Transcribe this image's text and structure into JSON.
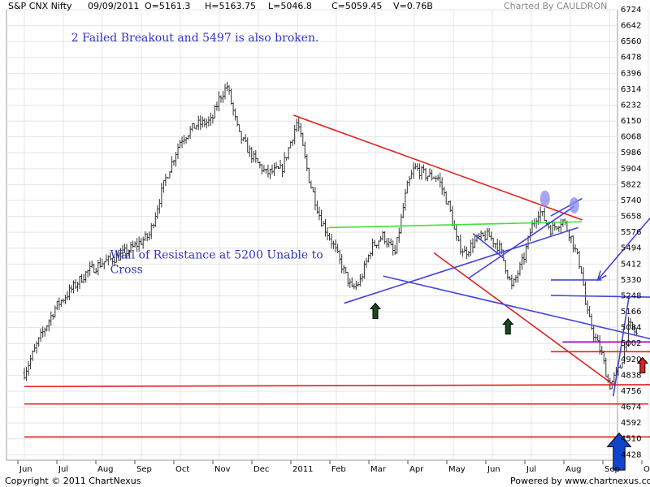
{
  "header": {
    "symbol": "S&P CNX Nifty",
    "date": "09/09/2011",
    "open": "O=5161.3",
    "high": "H=5163.75",
    "low": "L=5046.8",
    "close": "C=5059.45",
    "volume": "V=0.76B",
    "charted_by": "Charted By CAULDRON"
  },
  "footer": {
    "copyright": "Copyright © 2011 ChartNexus",
    "powered_by": "Powered by www.chartnexus.com"
  },
  "chart_data": {
    "type": "candlestick",
    "y_ticks": [
      6724,
      6642,
      6560,
      6478,
      6396,
      6314,
      6232,
      6150,
      6068,
      5986,
      5904,
      5822,
      5740,
      5658,
      5576,
      5494,
      5412,
      5330,
      5248,
      5166,
      5084,
      5002,
      4920,
      4838,
      4756,
      4674,
      4592,
      4510,
      4428
    ],
    "ylim": [
      4400,
      6724
    ],
    "x_labels": [
      "Jun",
      "Jul",
      "Aug",
      "Sep",
      "Oct",
      "Nov",
      "Dec",
      "2011",
      "Feb",
      "Mar",
      "Apr",
      "May",
      "Jun",
      "Jul",
      "Aug",
      "Sep",
      "Oct"
    ],
    "x_label_positions": [
      0,
      1,
      2,
      3,
      4,
      5,
      6,
      7,
      8,
      9,
      10,
      11,
      12,
      13,
      14,
      15,
      16
    ],
    "price_path": [
      [
        0,
        4850
      ],
      [
        0.4,
        5030
      ],
      [
        0.8,
        5190
      ],
      [
        1.2,
        5280
      ],
      [
        1.6,
        5370
      ],
      [
        2,
        5420
      ],
      [
        2.4,
        5450
      ],
      [
        2.8,
        5500
      ],
      [
        3.2,
        5560
      ],
      [
        3.6,
        5840
      ],
      [
        4,
        6050
      ],
      [
        4.4,
        6130
      ],
      [
        4.8,
        6150
      ],
      [
        5,
        6270
      ],
      [
        5.2,
        6330
      ],
      [
        5.5,
        6080
      ],
      [
        5.9,
        5950
      ],
      [
        6.2,
        5880
      ],
      [
        6.6,
        5900
      ],
      [
        7,
        6150
      ],
      [
        7.3,
        5850
      ],
      [
        7.6,
        5640
      ],
      [
        7.9,
        5520
      ],
      [
        8.1,
        5420
      ],
      [
        8.4,
        5280
      ],
      [
        8.6,
        5320
      ],
      [
        8.9,
        5500
      ],
      [
        9.2,
        5560
      ],
      [
        9.5,
        5460
      ],
      [
        9.8,
        5800
      ],
      [
        10,
        5910
      ],
      [
        10.3,
        5870
      ],
      [
        10.6,
        5860
      ],
      [
        10.9,
        5700
      ],
      [
        11.1,
        5520
      ],
      [
        11.3,
        5470
      ],
      [
        11.6,
        5540
      ],
      [
        11.9,
        5560
      ],
      [
        12.2,
        5490
      ],
      [
        12.5,
        5290
      ],
      [
        12.8,
        5440
      ],
      [
        13,
        5600
      ],
      [
        13.2,
        5690
      ],
      [
        13.5,
        5590
      ],
      [
        13.8,
        5640
      ],
      [
        14,
        5560
      ],
      [
        14.3,
        5370
      ],
      [
        14.4,
        5180
      ],
      [
        14.6,
        5050
      ],
      [
        14.8,
        4950
      ],
      [
        15,
        4780
      ],
      [
        15.3,
        4890
      ],
      [
        15.5,
        5100
      ],
      [
        15.7,
        5050
      ]
    ],
    "lines": [
      {
        "color": "#e02020",
        "points": [
          [
            6.9,
            6180
          ],
          [
            14.3,
            5640
          ]
        ]
      },
      {
        "color": "#e02020",
        "points": [
          [
            10.5,
            5470
          ],
          [
            15.1,
            4790
          ]
        ]
      },
      {
        "color": "#e02020",
        "points": [
          [
            0,
            4780
          ],
          [
            16.4,
            4790
          ]
        ]
      },
      {
        "color": "#e02020",
        "points": [
          [
            0,
            4690
          ],
          [
            16,
            4690
          ]
        ]
      },
      {
        "color": "#e02020",
        "points": [
          [
            0,
            4520
          ],
          [
            16.4,
            4520
          ]
        ]
      },
      {
        "color": "#e02020",
        "points": [
          [
            13.5,
            4960
          ],
          [
            16.4,
            4960
          ]
        ]
      },
      {
        "color": "#40e040",
        "points": [
          [
            7.8,
            5600
          ],
          [
            14.3,
            5630
          ]
        ]
      },
      {
        "color": "#4444dd",
        "points": [
          [
            8.2,
            5210
          ],
          [
            14.2,
            5600
          ]
        ]
      },
      {
        "color": "#4444dd",
        "points": [
          [
            9.2,
            5350
          ],
          [
            16.4,
            5010
          ]
        ]
      },
      {
        "color": "#4444dd",
        "points": [
          [
            11.4,
            5340
          ],
          [
            14.1,
            5710
          ]
        ]
      },
      {
        "color": "#4444dd",
        "points": [
          [
            13.5,
            5660
          ],
          [
            14.3,
            5750
          ]
        ]
      },
      {
        "color": "#4444dd",
        "points": [
          [
            13.5,
            5330
          ],
          [
            14.8,
            5330
          ]
        ]
      },
      {
        "color": "#4444dd",
        "points": [
          [
            13.5,
            5250
          ],
          [
            16.4,
            5240
          ]
        ]
      },
      {
        "color": "#4444dd",
        "points": [
          [
            11.5,
            5570
          ],
          [
            12.3,
            5440
          ]
        ]
      },
      {
        "color": "#4444dd",
        "points": [
          [
            15.1,
            4730
          ],
          [
            15.5,
            5240
          ]
        ]
      },
      {
        "color": "#9900bb",
        "points": [
          [
            13.8,
            5010
          ],
          [
            16.4,
            5010
          ]
        ]
      }
    ],
    "arrow_lines": [
      {
        "color": "#4444dd",
        "from": [
          16.3,
          5710
        ],
        "to": [
          14.7,
          5330
        ]
      }
    ],
    "ellipses": [
      {
        "x": 13.35,
        "y": 5750,
        "color": "#8888ee"
      },
      {
        "x": 14.1,
        "y": 5715,
        "color": "#8888ee"
      }
    ],
    "arrows": [
      {
        "x": 9.0,
        "y": 5210,
        "color": "#1a4a1a",
        "dir": "up",
        "size": "small"
      },
      {
        "x": 12.4,
        "y": 5130,
        "color": "#1a4a1a",
        "dir": "up",
        "size": "small"
      },
      {
        "x": 15.85,
        "y": 4930,
        "color": "#e02020",
        "dir": "up",
        "size": "small"
      },
      {
        "x": 15.25,
        "y": 4540,
        "color": "#1144cc",
        "dir": "up",
        "size": "large"
      }
    ],
    "annotations": [
      {
        "text": "2 Failed  Breakout and 5497 is also broken.",
        "x": 1.2,
        "y": 6560
      },
      {
        "text": "Wall of Resistance at 5200 Unable to",
        "x": 2.2,
        "y": 5440
      },
      {
        "text": "Cross",
        "x": 2.2,
        "y": 5365
      }
    ]
  }
}
